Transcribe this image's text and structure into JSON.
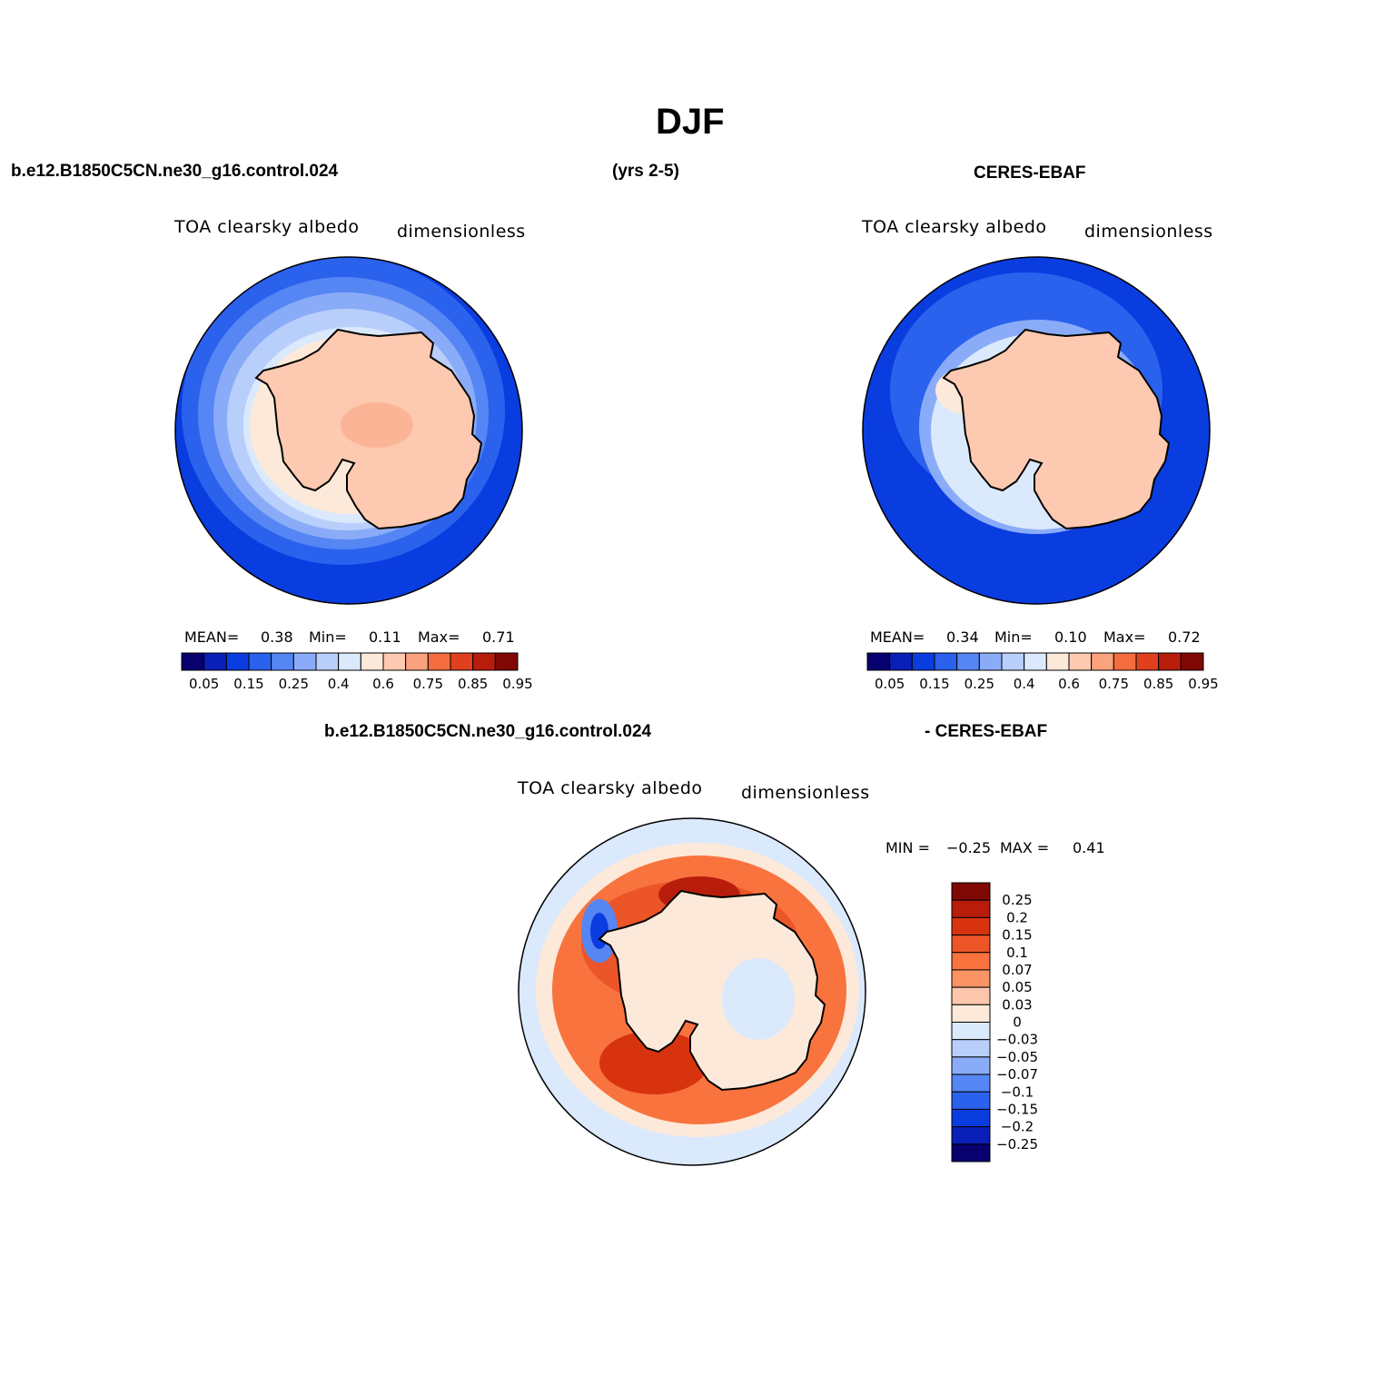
{
  "figure": {
    "title": "DJF",
    "case_name": "b.e12.B1850C5CN.ne30_g16.control.024",
    "years": "(yrs 2-5)",
    "obs_name": "CERES-EBAF",
    "diff_case_name": "b.e12.B1850C5CN.ne30_g16.control.024",
    "diff_obs_name": "- CERES-EBAF"
  },
  "panels": {
    "model": {
      "variable": "TOA clearsky albedo",
      "units": "dimensionless",
      "mean_label": "MEAN=",
      "mean": "0.38",
      "min_label": "Min=",
      "min": "0.11",
      "max_label": "Max=",
      "max": "0.71"
    },
    "obs": {
      "variable": "TOA clearsky albedo",
      "units": "dimensionless",
      "mean_label": "MEAN=",
      "mean": "0.34",
      "min_label": "Min=",
      "min": "0.10",
      "max_label": "Max=",
      "max": "0.72"
    },
    "diff": {
      "variable": "TOA clearsky albedo",
      "units": "dimensionless",
      "min_label": "MIN =",
      "min": "−0.25",
      "max_label": "MAX =",
      "max": "0.41"
    }
  },
  "colorbars": {
    "abs_colors": [
      "#08006e",
      "#0a1fb8",
      "#0a3de0",
      "#2a62ee",
      "#5586f4",
      "#8aacf8",
      "#b9cffb",
      "#dbe9fd",
      "#fde9d9",
      "#fdc9b0",
      "#fba27e",
      "#f46d3e",
      "#e0401e",
      "#b81d0c",
      "#7f0804"
    ],
    "abs_ticks": [
      "0.05",
      "0.15",
      "0.25",
      "0.4",
      "0.6",
      "0.75",
      "0.85",
      "0.95"
    ],
    "diff_colors": [
      "#7f0804",
      "#b81d0c",
      "#d8330f",
      "#ec5527",
      "#f8733e",
      "#fa9464",
      "#fdc7ad",
      "#fde9d9",
      "#dbe9fd",
      "#b9cffb",
      "#8aacf8",
      "#5586f4",
      "#2a62ee",
      "#0a3de0",
      "#0a1fb8",
      "#08006e"
    ],
    "diff_ticks": [
      "0.25",
      "0.2",
      "0.15",
      "0.1",
      "0.07",
      "0.05",
      "0.03",
      "0",
      "−0.03",
      "−0.05",
      "−0.07",
      "−0.1",
      "−0.15",
      "−0.2",
      "−0.25"
    ]
  }
}
